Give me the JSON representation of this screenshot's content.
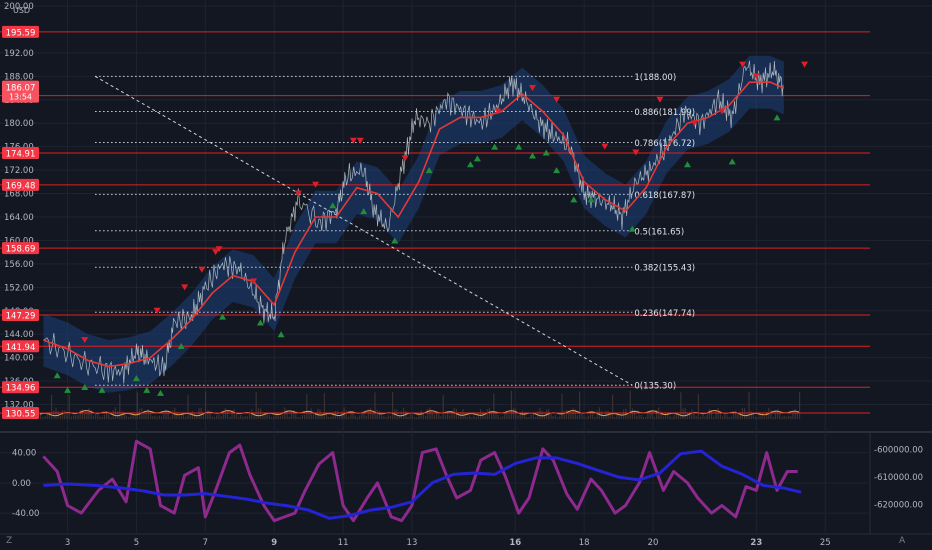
{
  "chart_data": [
    {
      "type": "line",
      "title": "",
      "currency_label": "USD",
      "y_axis_position": "left",
      "ylim": [
        128,
        200
      ],
      "y_ticks": [
        "200.00",
        "192.00",
        "188.00",
        "184.00",
        "180.00",
        "176.00",
        "172.00",
        "168.00",
        "164.00",
        "160.00",
        "156.00",
        "152.00",
        "148.00",
        "144.00",
        "140.00",
        "136.00",
        "132.00"
      ],
      "y_tick_values": [
        200,
        192,
        188,
        184,
        180,
        176,
        172,
        168,
        164,
        160,
        156,
        152,
        148,
        144,
        140,
        136,
        132
      ],
      "x_ticks": [
        "3",
        "5",
        "7",
        "9",
        "11",
        "13",
        "16",
        "18",
        "20",
        "23",
        "25"
      ],
      "x_tick_values": [
        3,
        5,
        7,
        9,
        11,
        13,
        16,
        18,
        20,
        23,
        25
      ],
      "xlim": [
        2.2,
        26.3
      ],
      "grid": true,
      "last_price": {
        "value": 186.07,
        "label": "186.07",
        "countdown": "13:54"
      },
      "price_path": {
        "x": [
          2.3,
          2.9,
          3.5,
          4.1,
          4.6,
          5.0,
          5.3,
          5.8,
          6.1,
          6.6,
          7.0,
          7.5,
          8.0,
          8.4,
          8.7,
          9.0,
          9.3,
          9.7,
          10.3,
          10.8,
          11.1,
          11.6,
          11.9,
          12.3,
          12.7,
          13.1,
          13.5,
          14.0,
          14.5,
          15.0,
          15.5,
          15.9,
          16.3,
          16.7,
          17.1,
          17.6,
          18.0,
          18.4,
          18.8,
          19.1,
          19.5,
          19.9,
          20.4,
          20.9,
          21.4,
          21.9,
          22.3,
          22.7,
          23.1,
          23.5,
          23.8
        ],
        "y": [
          143,
          141,
          139,
          138,
          137.5,
          141,
          140,
          138,
          146,
          147,
          152,
          156,
          155,
          151,
          148,
          147,
          160,
          167,
          163,
          165,
          171,
          172,
          165,
          162,
          172,
          181,
          180,
          184,
          182,
          180,
          183,
          187,
          184,
          180,
          178,
          176,
          168,
          167,
          166,
          164,
          170,
          172,
          176,
          182,
          180,
          184,
          181,
          190,
          187,
          189,
          186
        ]
      },
      "ma_path": {
        "x": [
          2.3,
          3.0,
          3.6,
          4.2,
          4.8,
          5.4,
          6.0,
          6.6,
          7.2,
          7.8,
          8.4,
          9.0,
          9.6,
          10.2,
          10.8,
          11.4,
          12.0,
          12.6,
          13.2,
          13.8,
          14.4,
          15.0,
          15.6,
          16.2,
          16.8,
          17.4,
          18.0,
          18.6,
          19.2,
          19.8,
          20.4,
          21.0,
          21.6,
          22.2,
          22.8,
          23.4,
          23.8
        ],
        "y": [
          143,
          141.5,
          139.5,
          138.5,
          139,
          140,
          143,
          146.5,
          151,
          154,
          153,
          149,
          158,
          164,
          164,
          169,
          168,
          164,
          170,
          179,
          181,
          181,
          182,
          185,
          182,
          178,
          170,
          167,
          165,
          169,
          176,
          180,
          181,
          183,
          187,
          187,
          186
        ]
      },
      "horizontal_levels": [
        {
          "value": 195.59,
          "label": "195.59"
        },
        {
          "value": 184.7,
          "label": "184.70"
        },
        {
          "value": 174.91,
          "label": "174.91"
        },
        {
          "value": 169.48,
          "label": "169.48"
        },
        {
          "value": 158.69,
          "label": "158.69"
        },
        {
          "value": 147.29,
          "label": "147.29"
        },
        {
          "value": 141.94,
          "label": "141.94"
        },
        {
          "value": 134.96,
          "label": "134.96"
        },
        {
          "value": 130.55,
          "label": "130.55"
        }
      ],
      "fibonacci": {
        "x_start": 3.8,
        "x_end": 19.4,
        "levels": [
          {
            "ratio": 1,
            "value": 188.0,
            "label": "1(188.00)"
          },
          {
            "ratio": 0.886,
            "value": 181.99,
            "label": "0.886(181.99)"
          },
          {
            "ratio": 0.786,
            "value": 176.72,
            "label": "0.786(176.72)"
          },
          {
            "ratio": 0.618,
            "value": 167.87,
            "label": "0.618(167.87)"
          },
          {
            "ratio": 0.5,
            "value": 161.65,
            "label": "0.5(161.65)"
          },
          {
            "ratio": 0.382,
            "value": 155.43,
            "label": "0.382(155.43)"
          },
          {
            "ratio": 0.236,
            "value": 147.74,
            "label": "0.236(147.74)"
          },
          {
            "ratio": 0,
            "value": 135.3,
            "label": "0(135.30)"
          }
        ],
        "trend_line": {
          "x": [
            3.8,
            19.4
          ],
          "y": [
            188.0,
            135.3
          ]
        }
      },
      "sell_markers": {
        "x": [
          3.5,
          5.6,
          6.4,
          6.9,
          7.3,
          7.4,
          8.4,
          9.7,
          10.2,
          11.3,
          11.5,
          12.8,
          15.5,
          16.5,
          17.2,
          18.6,
          19.5,
          20.2,
          21.2,
          22.0,
          22.6,
          23.0,
          24.4
        ],
        "y": [
          143,
          148,
          152,
          155,
          158,
          158.5,
          153,
          168,
          169.5,
          177,
          177,
          174,
          182,
          186,
          184,
          176,
          175,
          184,
          180,
          182,
          190,
          188,
          190
        ]
      },
      "buy_markers": {
        "x": [
          2.7,
          3.0,
          3.5,
          4.0,
          5.0,
          5.3,
          5.7,
          6.3,
          7.5,
          8.6,
          9.2,
          10.7,
          11.6,
          12.5,
          13.5,
          14.7,
          14.9,
          15.4,
          16.1,
          16.5,
          16.9,
          17.2,
          17.7,
          18.2,
          19.4,
          21.0,
          22.3,
          23.6
        ],
        "y": [
          137,
          134.5,
          135,
          134.5,
          136.5,
          134.5,
          134,
          142,
          147,
          146,
          144,
          166,
          165,
          160,
          172,
          173,
          174,
          176,
          176,
          174.5,
          175,
          172,
          167,
          167,
          162,
          173,
          173.5,
          181
        ]
      },
      "volume": {
        "baseline_value": 129.5,
        "note": "volume histogram along bottom of price pane"
      }
    },
    {
      "type": "line",
      "title": "",
      "left_axis": {
        "ticks": [
          "40.00",
          "0.00",
          "-40.00"
        ],
        "values": [
          40,
          0,
          -40
        ],
        "ylim": [
          -65,
          62
        ]
      },
      "right_axis": {
        "ticks": [
          "-600000.00",
          "-610000.00",
          "-620000.00"
        ],
        "values": [
          -600000,
          -610000,
          -620000
        ],
        "ylim": [
          -630000,
          -595000
        ]
      },
      "series": [
        {
          "color": "#8e2a8e",
          "axis": "left",
          "x": [
            2.3,
            2.7,
            3.0,
            3.4,
            3.9,
            4.3,
            4.7,
            5.0,
            5.4,
            5.7,
            6.1,
            6.4,
            6.8,
            7.0,
            7.3,
            7.7,
            8.0,
            8.3,
            8.7,
            9.0,
            9.3,
            9.6,
            9.9,
            10.3,
            10.7,
            11.0,
            11.3,
            11.7,
            12.0,
            12.4,
            12.7,
            13.0,
            13.3,
            13.7,
            14.0,
            14.3,
            14.7,
            15.0,
            15.4,
            15.7,
            16.1,
            16.4,
            16.8,
            17.1,
            17.5,
            17.8,
            18.2,
            18.5,
            18.9,
            19.2,
            19.6,
            19.9,
            20.3,
            20.6,
            21.0,
            21.3,
            21.7,
            22.0,
            22.4,
            22.7,
            23.0,
            23.3,
            23.6,
            23.9,
            24.2
          ],
          "y": [
            35,
            15,
            -30,
            -40,
            -10,
            5,
            -25,
            55,
            45,
            -30,
            -40,
            10,
            20,
            -45,
            -10,
            40,
            50,
            10,
            -30,
            -50,
            -45,
            -40,
            -10,
            25,
            40,
            -30,
            -50,
            -20,
            0,
            -45,
            -50,
            -30,
            40,
            45,
            10,
            -20,
            -10,
            30,
            40,
            10,
            -40,
            -20,
            45,
            30,
            -15,
            -35,
            5,
            -10,
            -40,
            -30,
            0,
            40,
            -10,
            15,
            0,
            -20,
            -40,
            -30,
            -45,
            -5,
            -10,
            40,
            -10,
            15,
            15
          ]
        },
        {
          "color": "#2424d4",
          "axis": "right",
          "x": [
            2.3,
            3.0,
            3.8,
            4.6,
            5.2,
            5.8,
            6.4,
            7.0,
            7.6,
            8.2,
            8.8,
            9.4,
            10.0,
            10.6,
            11.2,
            11.8,
            12.4,
            13.0,
            13.6,
            14.2,
            14.8,
            15.4,
            16.0,
            16.6,
            17.2,
            17.8,
            18.4,
            19.0,
            19.6,
            20.2,
            20.8,
            21.4,
            22.0,
            22.6,
            23.2,
            23.8,
            24.3
          ],
          "y": [
            -613000,
            -612500,
            -613000,
            -614000,
            -615000,
            -616500,
            -616500,
            -616000,
            -617000,
            -618000,
            -619500,
            -620500,
            -622000,
            -625000,
            -624000,
            -622000,
            -621000,
            -619000,
            -612000,
            -609000,
            -608500,
            -609000,
            -605000,
            -603000,
            -603000,
            -605000,
            -607500,
            -610000,
            -611000,
            -608500,
            -601500,
            -600500,
            -606000,
            -609000,
            -613000,
            -614000,
            -615500
          ]
        }
      ]
    }
  ]
}
